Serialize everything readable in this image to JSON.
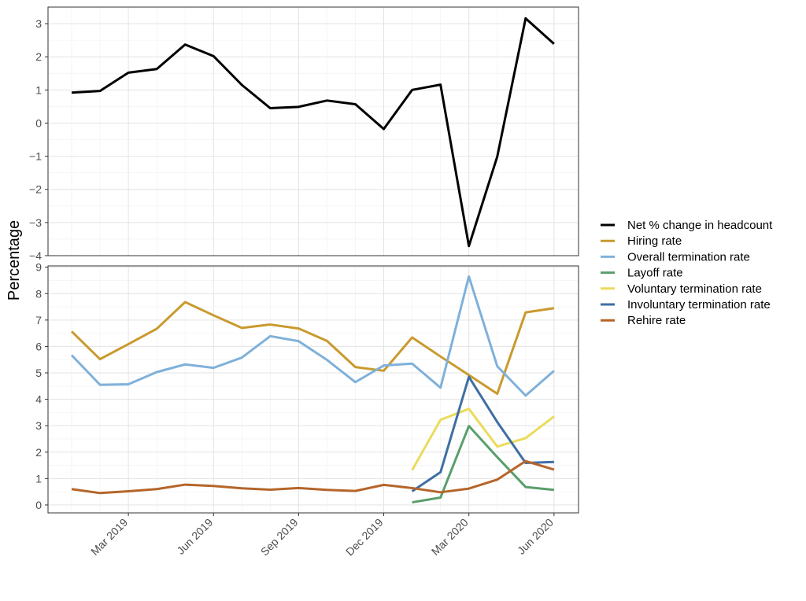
{
  "chart_data": {
    "type": "line",
    "ylabel": "Percentage",
    "xlabel": "",
    "legend_position": "right",
    "grid": true,
    "x": [
      "2019-01",
      "2019-02",
      "2019-03",
      "2019-04",
      "2019-05",
      "2019-06",
      "2019-07",
      "2019-08",
      "2019-09",
      "2019-10",
      "2019-11",
      "2019-12",
      "2020-01",
      "2020-02",
      "2020-03",
      "2020-04",
      "2020-05",
      "2020-06"
    ],
    "x_tick_labels": [
      "Mar 2019",
      "Jun 2019",
      "Sep 2019",
      "Dec 2019",
      "Mar 2020",
      "Jun 2020"
    ],
    "x_tick_months": [
      "2019-03",
      "2019-06",
      "2019-09",
      "2019-12",
      "2020-03",
      "2020-06"
    ],
    "panels": [
      {
        "name": "top",
        "ylim": [
          -4,
          3.5
        ],
        "y_ticks": [
          -4,
          -3,
          -2,
          -1,
          0,
          1,
          2,
          3
        ],
        "series": [
          {
            "name": "Net % change in headcount",
            "color": "#000000",
            "values": [
              0.92,
              0.97,
              1.52,
              1.63,
              2.37,
              2.02,
              1.15,
              0.45,
              0.49,
              0.68,
              0.57,
              -0.18,
              1.0,
              1.16,
              -3.71,
              -1.01,
              3.16,
              2.39
            ]
          }
        ]
      },
      {
        "name": "bottom",
        "ylim": [
          -0.3,
          9.05
        ],
        "y_ticks": [
          0,
          1,
          2,
          3,
          4,
          5,
          6,
          7,
          8,
          9
        ],
        "series": [
          {
            "name": "Hiring rate",
            "color": "#C99A2E",
            "values": [
              6.57,
              5.52,
              6.09,
              6.67,
              7.68,
              7.18,
              6.7,
              6.83,
              6.68,
              6.21,
              5.22,
              5.08,
              6.34,
              5.62,
              4.92,
              4.21,
              7.29,
              7.45
            ]
          },
          {
            "name": "Overall termination rate",
            "color": "#7FB1DA",
            "values": [
              5.67,
              4.55,
              4.57,
              5.03,
              5.32,
              5.19,
              5.58,
              6.39,
              6.2,
              5.49,
              4.65,
              5.28,
              5.35,
              4.44,
              8.65,
              5.25,
              4.14,
              5.08
            ]
          },
          {
            "name": "Layoff rate",
            "color": "#5A9E6C",
            "values": [
              null,
              null,
              null,
              null,
              null,
              null,
              null,
              null,
              null,
              null,
              null,
              null,
              0.1,
              0.28,
              2.99,
              1.81,
              0.68,
              0.57
            ]
          },
          {
            "name": "Voluntary termination rate",
            "color": "#ECDB5C",
            "values": [
              null,
              null,
              null,
              null,
              null,
              null,
              null,
              null,
              null,
              null,
              null,
              null,
              1.32,
              3.22,
              3.64,
              2.21,
              2.53,
              3.35
            ]
          },
          {
            "name": "Involuntary termination rate",
            "color": "#3E6FA3",
            "values": [
              null,
              null,
              null,
              null,
              null,
              null,
              null,
              null,
              null,
              null,
              null,
              null,
              0.52,
              1.24,
              4.85,
              3.14,
              1.59,
              1.63
            ]
          },
          {
            "name": "Rehire rate",
            "color": "#B5652A",
            "values": [
              0.6,
              0.45,
              0.52,
              0.6,
              0.77,
              0.72,
              0.63,
              0.58,
              0.64,
              0.57,
              0.53,
              0.76,
              0.64,
              0.48,
              0.62,
              0.96,
              1.66,
              1.34
            ]
          }
        ]
      }
    ],
    "legend": [
      {
        "name": "Net % change in headcount",
        "color": "#000000"
      },
      {
        "name": "Hiring rate",
        "color": "#C99A2E"
      },
      {
        "name": "Overall termination rate",
        "color": "#7FB1DA"
      },
      {
        "name": "Layoff rate",
        "color": "#5A9E6C"
      },
      {
        "name": "Voluntary termination rate",
        "color": "#ECDB5C"
      },
      {
        "name": "Involuntary termination rate",
        "color": "#3E6FA3"
      },
      {
        "name": "Rehire rate",
        "color": "#B5652A"
      }
    ]
  }
}
